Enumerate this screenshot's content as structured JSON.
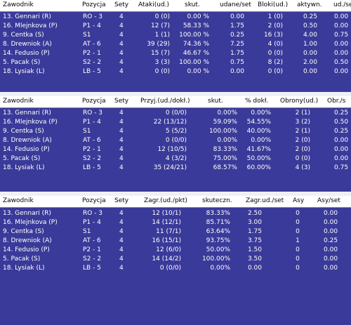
{
  "colors": {
    "panel_bg": "#3a3a9a",
    "header_bg": "#ffffff",
    "text": "#ffffff"
  },
  "attack": {
    "headers": [
      "Zawodnik",
      "Pozycja",
      "Sety",
      "Ataki(ud.)",
      "skut.",
      "udane/set",
      "Bloki(ud.)",
      "aktywn.",
      "ud./se"
    ],
    "rows": [
      [
        "13. Gennari (R)",
        "RO - 3",
        "4",
        "0 (0)",
        "0.00 %",
        "0.00",
        "1 (0)",
        "0.25",
        "0.00"
      ],
      [
        "16. Mlejnkova (P)",
        "P1 - 4",
        "4",
        "12 (7)",
        "58.33 %",
        "1.75",
        "2 (0)",
        "0.50",
        "0.00"
      ],
      [
        "9. Centka (S)",
        "S1",
        "4",
        "1 (1)",
        "100.00 %",
        "0.25",
        "16 (3)",
        "4.00",
        "0.75"
      ],
      [
        "8. Drewniok (A)",
        "AT - 6",
        "4",
        "39 (29)",
        "74.36 %",
        "7.25",
        "4 (0)",
        "1.00",
        "0.00"
      ],
      [
        "14. Fedusio (P)",
        "P2 - 1",
        "4",
        "15 (7)",
        "46.67 %",
        "1.75",
        "0 (0)",
        "0.00",
        "0.00"
      ],
      [
        "5. Pacak (S)",
        "S2 - 2",
        "4",
        "3 (3)",
        "100.00 %",
        "0.75",
        "8 (2)",
        "2.00",
        "0.50"
      ],
      [
        "18. Lysiak (L)",
        "LB - 5",
        "4",
        "0 (0)",
        "0.00 %",
        "0.00",
        "0 (0)",
        "0.00",
        "0.00"
      ]
    ]
  },
  "reception": {
    "headers": [
      "Zawodnik",
      "Pozycja",
      "Sety",
      "Przyj.(ud./dokł.)",
      "skut.",
      "% dokł.",
      "Obrony(ud.)",
      "Obr./s"
    ],
    "rows": [
      [
        "13. Gennari (R)",
        "RO - 3",
        "4",
        "0 (0/0)",
        "0.00%",
        "0.00%",
        "2 (1)",
        "0.25"
      ],
      [
        "16. Mlejnkova (P)",
        "P1 - 4",
        "4",
        "22 (13/12)",
        "59.09%",
        "54.55%",
        "3 (2)",
        "0.50"
      ],
      [
        "9. Centka (S)",
        "S1",
        "4",
        "5 (5/2)",
        "100.00%",
        "40.00%",
        "2 (1)",
        "0.25"
      ],
      [
        "8. Drewniok (A)",
        "AT - 6",
        "4",
        "0 (0/0)",
        "0.00%",
        "0.00%",
        "2 (0)",
        "0.00"
      ],
      [
        "14. Fedusio (P)",
        "P2 - 1",
        "4",
        "12 (10/5)",
        "83.33%",
        "41.67%",
        "2 (0)",
        "0.00"
      ],
      [
        "5. Pacak (S)",
        "S2 - 2",
        "4",
        "4 (3/2)",
        "75.00%",
        "50.00%",
        "0 (0)",
        "0.00"
      ],
      [
        "18. Lysiak (L)",
        "LB - 5",
        "4",
        "35 (24/21)",
        "68.57%",
        "60.00%",
        "4 (3)",
        "0.75"
      ]
    ]
  },
  "serve": {
    "headers": [
      "Zawodnik",
      "Pozycja",
      "Sety",
      "Zagr.(ud./pkt)",
      "skuteczn.",
      "Zagr.ud./set",
      "Asy",
      "Asy/set"
    ],
    "rows": [
      [
        "13. Gennari (R)",
        "RO - 3",
        "4",
        "12 (10/1)",
        "83.33%",
        "2.50",
        "0",
        "0.00"
      ],
      [
        "16. Mlejnkova (P)",
        "P1 - 4",
        "4",
        "14 (12/1)",
        "85.71%",
        "3.00",
        "0",
        "0.00"
      ],
      [
        "9. Centka (S)",
        "S1",
        "4",
        "11 (7/1)",
        "63.64%",
        "1.75",
        "0",
        "0.00"
      ],
      [
        "8. Drewniok (A)",
        "AT - 6",
        "4",
        "16 (15/1)",
        "93.75%",
        "3.75",
        "1",
        "0.25"
      ],
      [
        "14. Fedusio (P)",
        "P2 - 1",
        "4",
        "12 (6/0)",
        "50.00%",
        "1.50",
        "0",
        "0.00"
      ],
      [
        "5. Pacak (S)",
        "S2 - 2",
        "4",
        "14 (14/2)",
        "100.00%",
        "3.50",
        "0",
        "0.00"
      ],
      [
        "18. Lysiak (L)",
        "LB - 5",
        "4",
        "0 (0/0)",
        "0.00%",
        "0.00",
        "0",
        "0.00"
      ]
    ]
  }
}
